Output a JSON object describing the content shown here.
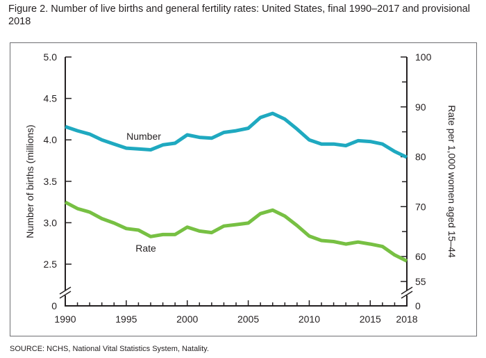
{
  "figure": {
    "title": "Figure 2. Number of live births and general fertility rates: United States, final 1990–2017 and provisional 2018",
    "source": "SOURCE: NCHS, National Vital Statistics System, Natality."
  },
  "chart_data": {
    "type": "line",
    "title": "Figure 2. Number of live births and general fertility rates: United States, final 1990–2017 and provisional 2018",
    "xlabel": "",
    "ylabel": "Number of births (millions)",
    "y2label": "Rate per 1,000 women aged 15–44",
    "x": [
      1990,
      1991,
      1992,
      1993,
      1994,
      1995,
      1996,
      1997,
      1998,
      1999,
      2000,
      2001,
      2002,
      2003,
      2004,
      2005,
      2006,
      2007,
      2008,
      2009,
      2010,
      2011,
      2012,
      2013,
      2014,
      2015,
      2016,
      2017,
      2018
    ],
    "xlim": [
      1990,
      2018
    ],
    "x_tick_labels": [
      "1990",
      "1995",
      "2000",
      "2005",
      "2010",
      "2015",
      "2018"
    ],
    "x_ticks": [
      1990,
      1995,
      2000,
      2005,
      2010,
      2015,
      2018
    ],
    "ylim": [
      0,
      5.0
    ],
    "y_axis_break": [
      0,
      2.3
    ],
    "y_tick_labels": [
      "0",
      "2.5",
      "3.0",
      "3.5",
      "4.0",
      "4.5",
      "5.0"
    ],
    "y_ticks": [
      0,
      2.5,
      3.0,
      3.5,
      4.0,
      4.5,
      5.0
    ],
    "y2lim": [
      0,
      100
    ],
    "y2_axis_break": [
      0,
      53
    ],
    "y2_tick_labels": [
      "0",
      "55",
      "60",
      "70",
      "80",
      "90",
      "100"
    ],
    "y2_ticks": [
      0,
      55,
      60,
      70,
      80,
      90,
      100
    ],
    "y2_minor_ticks": [
      65,
      75,
      85,
      95
    ],
    "grid": false,
    "legend": "inline labels",
    "series": [
      {
        "name": "Number",
        "axis": "left",
        "color": "#1fa9c0",
        "values": [
          4.16,
          4.11,
          4.07,
          4.0,
          3.95,
          3.9,
          3.89,
          3.88,
          3.94,
          3.96,
          4.06,
          4.03,
          4.02,
          4.09,
          4.11,
          4.14,
          4.27,
          4.32,
          4.25,
          4.13,
          4.0,
          3.95,
          3.95,
          3.93,
          3.99,
          3.98,
          3.95,
          3.86,
          3.79
        ]
      },
      {
        "name": "Rate",
        "axis": "right",
        "color": "#77c043",
        "values": [
          70.9,
          69.6,
          68.9,
          67.6,
          66.7,
          65.6,
          65.3,
          64.0,
          64.4,
          64.4,
          65.9,
          65.1,
          64.8,
          66.1,
          66.4,
          66.7,
          68.6,
          69.3,
          68.1,
          66.2,
          64.1,
          63.2,
          63.0,
          62.5,
          62.9,
          62.5,
          62.0,
          60.3,
          59.1
        ]
      }
    ]
  }
}
